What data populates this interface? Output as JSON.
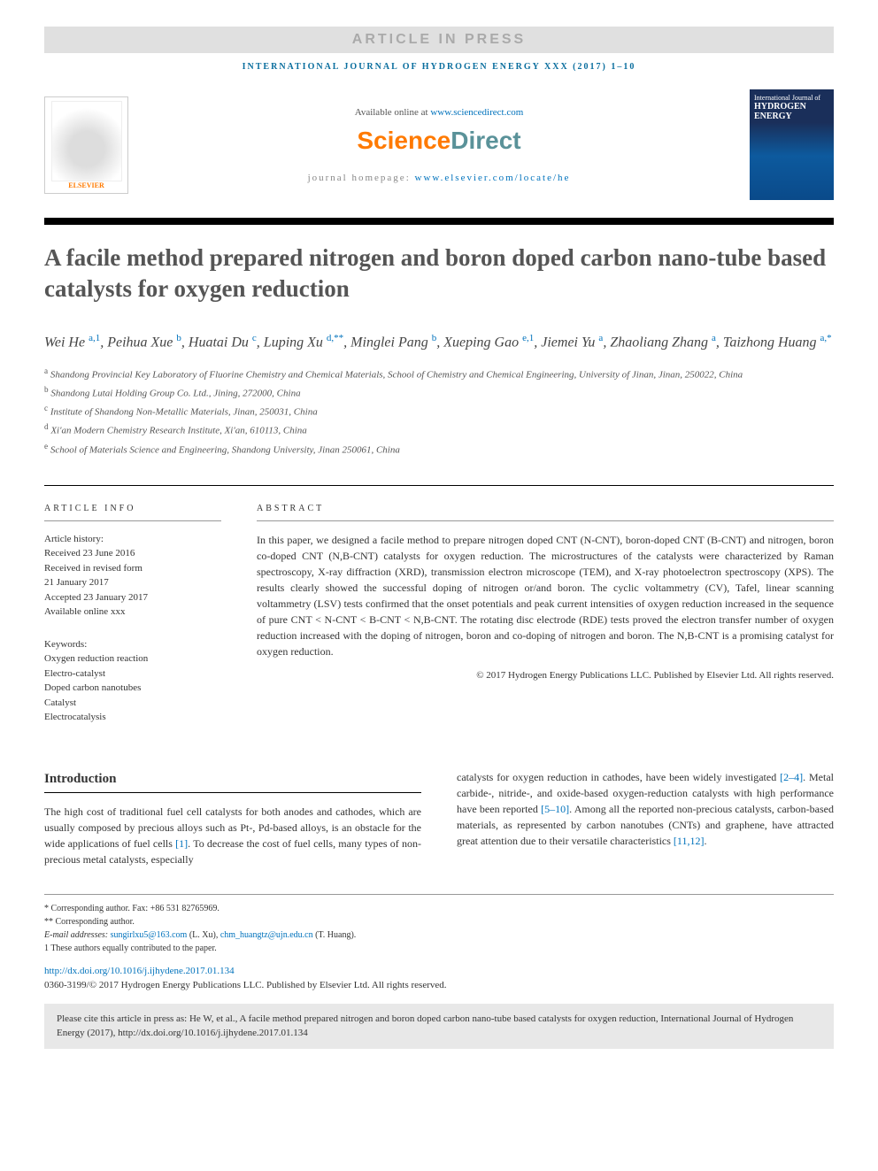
{
  "press_banner": "ARTICLE IN PRESS",
  "journal_ref": "INTERNATIONAL JOURNAL OF HYDROGEN ENERGY XXX (2017) 1–10",
  "header": {
    "elsevier_label": "ELSEVIER",
    "avail_prefix": "Available online at ",
    "avail_link": "www.sciencedirect.com",
    "sd_orange": "Science",
    "sd_teal": "Direct",
    "homepage_prefix": "journal homepage: ",
    "homepage_link": "www.elsevier.com/locate/he",
    "cover_line1": "International Journal of",
    "cover_line2": "HYDROGEN",
    "cover_line3": "ENERGY"
  },
  "title": "A facile method prepared nitrogen and boron doped carbon nano-tube based catalysts for oxygen reduction",
  "authors_html": "Wei He <sup>a,1</sup>, Peihua Xue <sup>b</sup>, Huatai Du <sup>c</sup>, Luping Xu <sup>d,**</sup>, Minglei Pang <sup>b</sup>, Xueping Gao <sup>e,1</sup>, Jiemei Yu <sup>a</sup>, Zhaoliang Zhang <sup>a</sup>, Taizhong Huang <sup>a,*</sup>",
  "affiliations": [
    "a Shandong Provincial Key Laboratory of Fluorine Chemistry and Chemical Materials, School of Chemistry and Chemical Engineering, University of Jinan, Jinan, 250022, China",
    "b Shandong Lutai Holding Group Co. Ltd., Jining, 272000, China",
    "c Institute of Shandong Non-Metallic Materials, Jinan, 250031, China",
    "d Xi'an Modern Chemistry Research Institute, Xi'an, 610113, China",
    "e School of Materials Science and Engineering, Shandong University, Jinan 250061, China"
  ],
  "info": {
    "heading": "ARTICLE INFO",
    "hist_label": "Article history:",
    "history": [
      "Received 23 June 2016",
      "Received in revised form",
      "21 January 2017",
      "Accepted 23 January 2017",
      "Available online xxx"
    ],
    "kw_label": "Keywords:",
    "keywords": [
      "Oxygen reduction reaction",
      "Electro-catalyst",
      "Doped carbon nanotubes",
      "Catalyst",
      "Electrocatalysis"
    ]
  },
  "abstract": {
    "heading": "ABSTRACT",
    "text": "In this paper, we designed a facile method to prepare nitrogen doped CNT (N-CNT), boron-doped CNT (B-CNT) and nitrogen, boron co-doped CNT (N,B-CNT) catalysts for oxygen reduction. The microstructures of the catalysts were characterized by Raman spectroscopy, X-ray diffraction (XRD), transmission electron microscope (TEM), and X-ray photoelectron spectroscopy (XPS). The results clearly showed the successful doping of nitrogen or/and boron. The cyclic voltammetry (CV), Tafel, linear scanning voltammetry (LSV) tests confirmed that the onset potentials and peak current intensities of oxygen reduction increased in the sequence of pure CNT < N-CNT < B-CNT < N,B-CNT. The rotating disc electrode (RDE) tests proved the electron transfer number of oxygen reduction increased with the doping of nitrogen, boron and co-doping of nitrogen and boron. The N,B-CNT is a promising catalyst for oxygen reduction.",
    "copyright": "© 2017 Hydrogen Energy Publications LLC. Published by Elsevier Ltd. All rights reserved."
  },
  "intro": {
    "heading": "Introduction",
    "col1": "The high cost of traditional fuel cell catalysts for both anodes and cathodes, which are usually composed by precious alloys such as Pt-, Pd-based alloys, is an obstacle for the wide applications of fuel cells [1]. To decrease the cost of fuel cells, many types of non-precious metal catalysts, especially",
    "col2": "catalysts for oxygen reduction in cathodes, have been widely investigated [2–4]. Metal carbide-, nitride-, and oxide-based oxygen-reduction catalysts with high performance have been reported [5–10]. Among all the reported non-precious catalysts, carbon-based materials, as represented by carbon nanotubes (CNTs) and graphene, have attracted great attention due to their versatile characteristics [11,12]."
  },
  "footnotes": {
    "corr1": "* Corresponding author. Fax: +86 531 82765969.",
    "corr2": "** Corresponding author.",
    "emails_label": "E-mail addresses: ",
    "email1": "sungirlxu5@163.com",
    "email1_name": " (L. Xu), ",
    "email2": "chm_huangtz@ujn.edu.cn",
    "email2_name": " (T. Huang).",
    "contrib": "1 These authors equally contributed to the paper."
  },
  "doi": "http://dx.doi.org/10.1016/j.ijhydene.2017.01.134",
  "bottom_copy": "0360-3199/© 2017 Hydrogen Energy Publications LLC. Published by Elsevier Ltd. All rights reserved.",
  "cite_box": "Please cite this article in press as: He W, et al., A facile method prepared nitrogen and boron doped carbon nano-tube based catalysts for oxygen reduction, International Journal of Hydrogen Energy (2017), http://dx.doi.org/10.1016/j.ijhydene.2017.01.134",
  "colors": {
    "link": "#0072bc",
    "orange": "#ff7a00",
    "teal": "#5a9299",
    "banner_bg": "#e0e0e0",
    "cite_bg": "#e8e8e8"
  }
}
